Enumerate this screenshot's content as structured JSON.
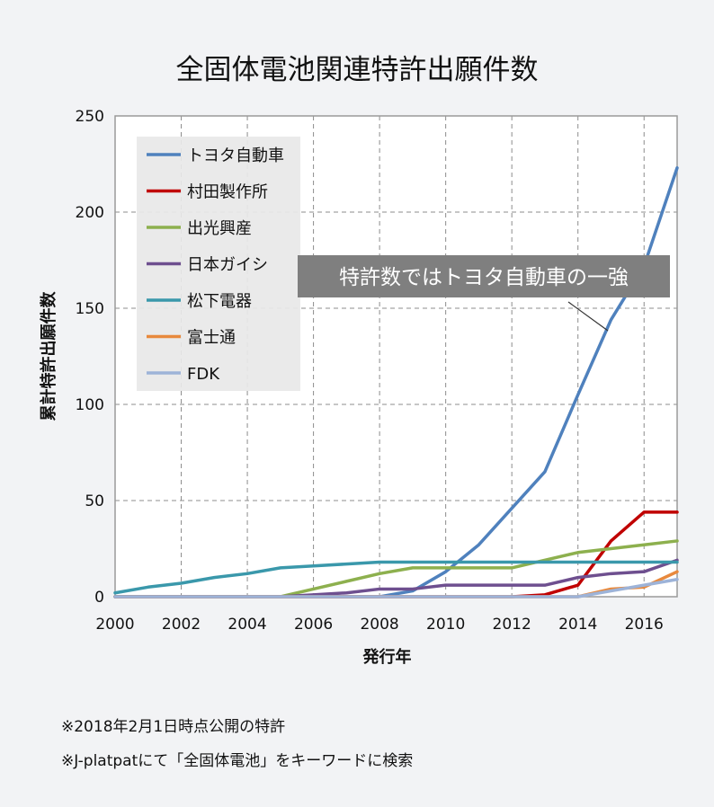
{
  "chart_data": {
    "type": "line",
    "title": "全固体電池関連特許出願件数",
    "xlabel": "発行年",
    "ylabel": "累計特許出願件数",
    "xlim": [
      2000,
      2017
    ],
    "ylim": [
      0,
      250
    ],
    "xticks": [
      2000,
      2002,
      2004,
      2006,
      2008,
      2010,
      2012,
      2014,
      2016
    ],
    "yticks": [
      0,
      50,
      100,
      150,
      200,
      250
    ],
    "grid": true,
    "legend_position": "top-left",
    "annotation": "特許数ではトヨタ自動車の一強",
    "x": [
      2000,
      2001,
      2002,
      2003,
      2004,
      2005,
      2006,
      2007,
      2008,
      2009,
      2010,
      2011,
      2012,
      2013,
      2014,
      2015,
      2016,
      2017
    ],
    "series": [
      {
        "name": "トヨタ自動車",
        "color": "#4f81bd",
        "values": [
          0,
          0,
          0,
          0,
          0,
          0,
          0,
          0,
          0,
          3,
          13,
          27,
          46,
          65,
          105,
          144,
          172,
          223
        ]
      },
      {
        "name": "村田製作所",
        "color": "#c00000",
        "values": [
          0,
          0,
          0,
          0,
          0,
          0,
          0,
          0,
          0,
          0,
          0,
          0,
          0,
          1,
          6,
          29,
          44,
          44
        ]
      },
      {
        "name": "出光興産",
        "color": "#8db04e",
        "values": [
          0,
          0,
          0,
          0,
          0,
          0,
          4,
          8,
          12,
          15,
          15,
          15,
          15,
          19,
          23,
          25,
          27,
          29
        ]
      },
      {
        "name": "日本ガイシ",
        "color": "#6e4f8f",
        "values": [
          0,
          0,
          0,
          0,
          0,
          0,
          1,
          2,
          4,
          4,
          6,
          6,
          6,
          6,
          10,
          12,
          13,
          19
        ]
      },
      {
        "name": "松下電器",
        "color": "#3a98ab",
        "values": [
          2,
          5,
          7,
          10,
          12,
          15,
          16,
          17,
          18,
          18,
          18,
          18,
          18,
          18,
          18,
          18,
          18,
          18
        ]
      },
      {
        "name": "富士通",
        "color": "#e8893d",
        "values": [
          0,
          0,
          0,
          0,
          0,
          0,
          0,
          0,
          0,
          0,
          0,
          0,
          0,
          0,
          0,
          4,
          5,
          13
        ]
      },
      {
        "name": "FDK",
        "color": "#9db3d8",
        "values": [
          0,
          0,
          0,
          0,
          0,
          0,
          0,
          0,
          0,
          0,
          0,
          0,
          0,
          0,
          0,
          3,
          6,
          9
        ]
      }
    ]
  },
  "notes": [
    "※2018年2月1日時点公開の特許",
    "※J-platpatにて「全固体電池」をキーワードに検索"
  ]
}
